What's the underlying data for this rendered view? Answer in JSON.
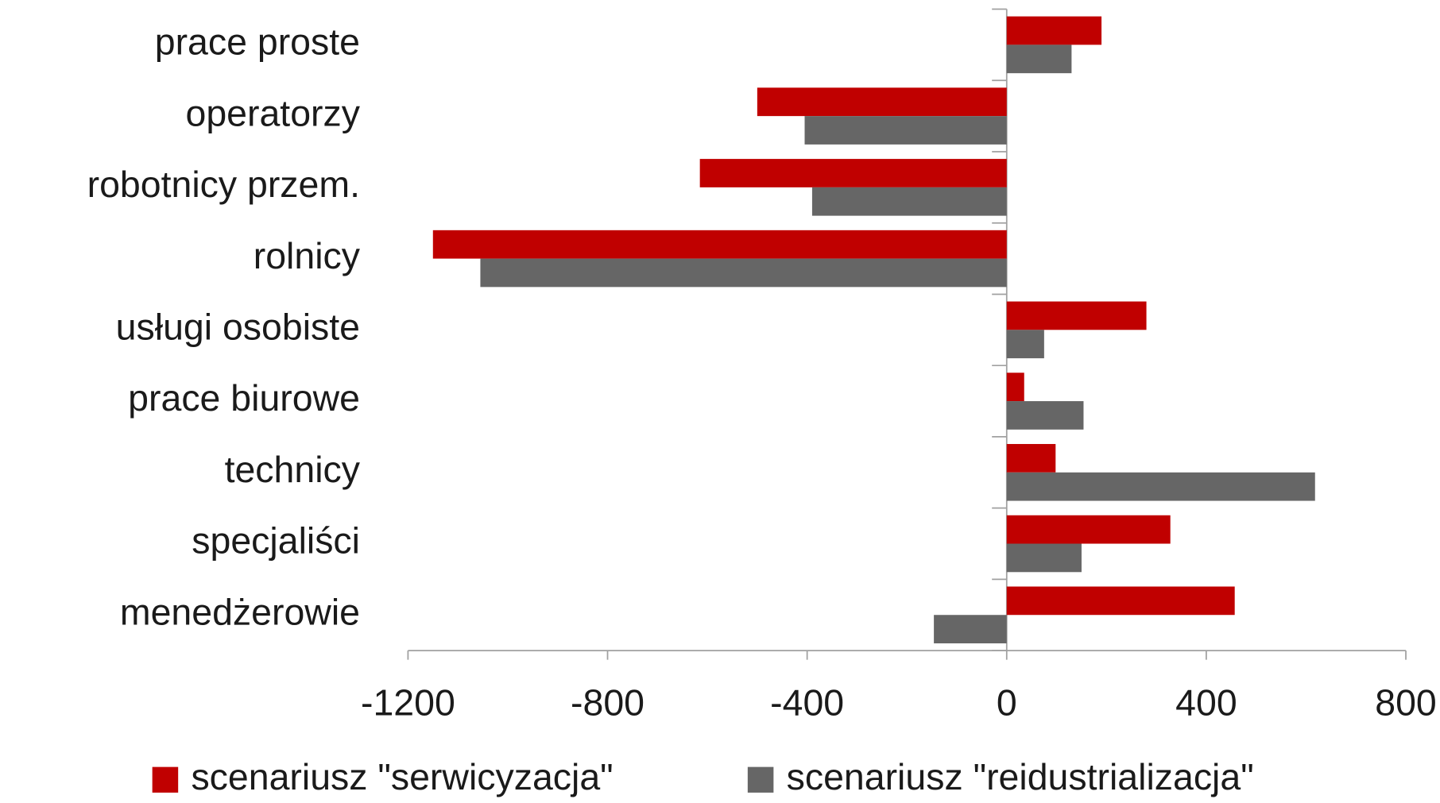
{
  "chart_data": {
    "type": "hbar",
    "categories": [
      "prace proste",
      "operatorzy",
      "robotnicy przem.",
      "rolnicy",
      "usługi osobiste",
      "prace biurowe",
      "technicy",
      "specjaliści",
      "menedżerowie"
    ],
    "series": [
      {
        "name": "scenariusz \"serwicyzacja\"",
        "color": "#c00000",
        "values": [
          190,
          -500,
          -615,
          -1150,
          280,
          35,
          98,
          328,
          457
        ]
      },
      {
        "name": "scenariusz \"reidustrializacja\"",
        "color": "#666666",
        "values": [
          130,
          -405,
          -390,
          -1055,
          75,
          154,
          618,
          150,
          -146
        ]
      }
    ],
    "xlim": [
      -1200,
      800
    ],
    "xticks": [
      -1200,
      -800,
      -400,
      0,
      400,
      800
    ],
    "legend": "bottom"
  }
}
